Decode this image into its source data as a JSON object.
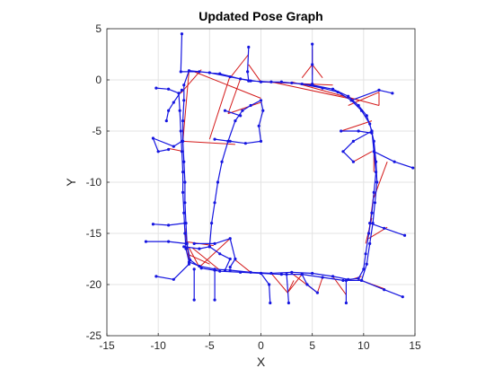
{
  "chart_data": {
    "type": "line",
    "title": "Updated Pose Graph",
    "xlabel": "X",
    "ylabel": "Y",
    "xlim": [
      -15,
      15
    ],
    "ylim": [
      -25,
      5
    ],
    "xticks": [
      -15,
      -10,
      -5,
      0,
      5,
      10,
      15
    ],
    "yticks": [
      5,
      0,
      -5,
      -10,
      -15,
      -20,
      -25
    ],
    "grid": true,
    "colors": {
      "poses": "#1515e0",
      "loop_closures": "#d41a1a",
      "grid": "#e3e3e3",
      "axes": "#262626"
    },
    "series": [
      {
        "role": "poses",
        "points": [
          [
            -10.2,
            -0.8
          ],
          [
            -9.0,
            -0.9
          ],
          [
            -8.0,
            -1.3
          ],
          [
            -7.9,
            -3.0
          ],
          [
            -7.8,
            -5.0
          ],
          [
            -7.7,
            -7.0
          ],
          [
            -7.6,
            -9.0
          ],
          [
            -7.6,
            -11.0
          ],
          [
            -7.5,
            -13.0
          ],
          [
            -7.4,
            -15.0
          ],
          [
            -7.3,
            -16.5
          ],
          [
            -7.0,
            -17.8
          ],
          [
            -6.0,
            -18.2
          ],
          [
            -4.5,
            -18.5
          ],
          [
            -3.0,
            -18.6
          ],
          [
            -1.0,
            -18.8
          ],
          [
            1.0,
            -18.9
          ],
          [
            3.0,
            -18.8
          ],
          [
            5.0,
            -18.9
          ],
          [
            7.0,
            -19.2
          ],
          [
            8.5,
            -19.5
          ],
          [
            9.5,
            -19.4
          ],
          [
            10.0,
            -18.5
          ],
          [
            10.2,
            -17.0
          ],
          [
            10.5,
            -15.0
          ],
          [
            10.8,
            -13.0
          ],
          [
            11.0,
            -11.0
          ],
          [
            11.2,
            -9.0
          ],
          [
            11.0,
            -7.0
          ],
          [
            10.8,
            -5.0
          ],
          [
            10.3,
            -3.5
          ],
          [
            9.5,
            -2.5
          ],
          [
            8.5,
            -1.6
          ],
          [
            7.0,
            -0.9
          ],
          [
            5.0,
            -0.5
          ],
          [
            3.0,
            -0.3
          ],
          [
            1.0,
            -0.2
          ],
          [
            -1.0,
            -0.1
          ],
          [
            -3.0,
            0.3
          ],
          [
            -5.0,
            0.7
          ],
          [
            -7.0,
            0.9
          ],
          [
            -7.5,
            -0.5
          ],
          [
            -7.5,
            -2.0
          ],
          [
            -7.6,
            -4.0
          ],
          [
            -7.6,
            -6.0
          ],
          [
            -7.5,
            -8.0
          ],
          [
            -7.4,
            -10.0
          ],
          [
            -7.4,
            -12.0
          ],
          [
            -7.3,
            -14.0
          ],
          [
            -7.2,
            -16.0
          ],
          [
            -6.9,
            -17.6
          ],
          [
            -5.8,
            -18.4
          ],
          [
            -4.0,
            -18.7
          ],
          [
            -2.0,
            -18.8
          ],
          [
            0.0,
            -18.9
          ],
          [
            2.0,
            -19.0
          ],
          [
            4.0,
            -19.0
          ],
          [
            6.0,
            -19.3
          ],
          [
            8.0,
            -19.6
          ],
          [
            9.8,
            -19.6
          ],
          [
            10.3,
            -18.0
          ],
          [
            10.6,
            -16.0
          ],
          [
            10.9,
            -14.0
          ],
          [
            11.1,
            -12.0
          ],
          [
            11.3,
            -10.0
          ],
          [
            11.2,
            -8.0
          ],
          [
            11.0,
            -6.0
          ],
          [
            10.6,
            -4.3
          ],
          [
            9.8,
            -3.0
          ],
          [
            8.8,
            -2.0
          ],
          [
            7.5,
            -1.2
          ],
          [
            6.0,
            -0.8
          ],
          [
            4.0,
            -0.4
          ],
          [
            2.0,
            -0.2
          ],
          [
            0.0,
            -0.2
          ],
          [
            -2.0,
            0.1
          ],
          [
            -4.0,
            0.6
          ],
          [
            -6.0,
            0.8
          ],
          [
            -7.8,
            0.8
          ],
          [
            -7.7,
            4.5
          ]
        ]
      },
      {
        "role": "branch",
        "points": [
          [
            -7.7,
            -1.0
          ],
          [
            -8.5,
            -2.2
          ],
          [
            -9.0,
            -3.0
          ],
          [
            -9.2,
            -4.0
          ]
        ]
      },
      {
        "role": "branch",
        "points": [
          [
            -7.7,
            -6.0
          ],
          [
            -8.5,
            -6.5
          ],
          [
            -10.5,
            -5.7
          ],
          [
            -10.0,
            -7.0
          ],
          [
            -9.0,
            -6.8
          ]
        ]
      },
      {
        "role": "branch",
        "points": [
          [
            -7.4,
            -14.0
          ],
          [
            -9.0,
            -14.2
          ],
          [
            -10.5,
            -14.1
          ]
        ]
      },
      {
        "role": "branch",
        "points": [
          [
            -7.3,
            -16.0
          ],
          [
            -9.0,
            -15.8
          ],
          [
            -11.2,
            -15.8
          ]
        ]
      },
      {
        "role": "branch",
        "points": [
          [
            -7.0,
            -18.0
          ],
          [
            -8.5,
            -19.5
          ],
          [
            -10.2,
            -19.2
          ]
        ]
      },
      {
        "role": "branch",
        "points": [
          [
            -6.5,
            -18.5
          ],
          [
            -6.5,
            -21.5
          ]
        ]
      },
      {
        "role": "branch",
        "points": [
          [
            -4.5,
            -18.6
          ],
          [
            -4.5,
            -21.5
          ]
        ]
      },
      {
        "role": "branch",
        "points": [
          [
            -6.5,
            -16.0
          ],
          [
            -4.5,
            -16.0
          ],
          [
            -3.0,
            -15.5
          ],
          [
            -2.5,
            -17.5
          ],
          [
            -3.0,
            -18.3
          ]
        ]
      },
      {
        "role": "branch",
        "points": [
          [
            0.0,
            -18.9
          ],
          [
            0.8,
            -20.0
          ],
          [
            0.9,
            -21.8
          ]
        ]
      },
      {
        "role": "branch",
        "points": [
          [
            2.5,
            -19.0
          ],
          [
            2.7,
            -21.8
          ]
        ]
      },
      {
        "role": "branch",
        "points": [
          [
            4.0,
            -19.0
          ],
          [
            4.5,
            -20.0
          ],
          [
            5.5,
            -20.8
          ]
        ]
      },
      {
        "role": "branch",
        "points": [
          [
            8.3,
            -19.6
          ],
          [
            8.3,
            -21.8
          ]
        ]
      },
      {
        "role": "branch",
        "points": [
          [
            9.8,
            -19.6
          ],
          [
            12.0,
            -20.5
          ],
          [
            13.8,
            -21.2
          ]
        ]
      },
      {
        "role": "branch",
        "points": [
          [
            10.6,
            -14.0
          ],
          [
            12.0,
            -14.5
          ],
          [
            14.0,
            -15.2
          ]
        ]
      },
      {
        "role": "branch",
        "points": [
          [
            11.0,
            -7.0
          ],
          [
            13.0,
            -8.0
          ],
          [
            14.8,
            -8.6
          ]
        ]
      },
      {
        "role": "branch",
        "points": [
          [
            10.8,
            -5.2
          ],
          [
            9.5,
            -5.0
          ],
          [
            7.8,
            -5.0
          ]
        ]
      },
      {
        "role": "branch",
        "points": [
          [
            10.8,
            -5.0
          ],
          [
            9.0,
            -6.0
          ],
          [
            8.0,
            -7.0
          ],
          [
            9.0,
            -8.0
          ]
        ]
      },
      {
        "role": "branch",
        "points": [
          [
            8.8,
            -2.0
          ],
          [
            11.5,
            -1.0
          ],
          [
            12.8,
            -1.3
          ]
        ]
      },
      {
        "role": "branch",
        "points": [
          [
            5.0,
            -0.4
          ],
          [
            5.0,
            1.5
          ],
          [
            5.0,
            3.5
          ]
        ]
      },
      {
        "role": "branch",
        "points": [
          [
            -1.2,
            -0.1
          ],
          [
            -1.3,
            0.8
          ],
          [
            -1.2,
            3.2
          ]
        ]
      },
      {
        "role": "branch",
        "points": [
          [
            -7.5,
            -16.3
          ],
          [
            -6.0,
            -16.5
          ],
          [
            -5.0,
            -16.3
          ],
          [
            -4.0,
            -17.0
          ],
          [
            -3.0,
            -17.5
          ],
          [
            -3.5,
            -18.6
          ]
        ]
      },
      {
        "role": "branch",
        "points": [
          [
            -5.0,
            -16.3
          ],
          [
            -4.8,
            -14.0
          ],
          [
            -4.5,
            -12.0
          ],
          [
            -4.2,
            -10.0
          ],
          [
            -3.8,
            -8.0
          ],
          [
            -3.2,
            -6.0
          ],
          [
            -2.5,
            -4.0
          ],
          [
            -1.8,
            -3.0
          ],
          [
            -1.0,
            -2.5
          ],
          [
            0.0,
            -2.0
          ],
          [
            0.2,
            -3.0
          ],
          [
            -0.2,
            -4.5
          ],
          [
            0.0,
            -6.0
          ],
          [
            -1.5,
            -6.2
          ],
          [
            -3.0,
            -6.0
          ],
          [
            -4.5,
            -5.8
          ]
        ]
      },
      {
        "role": "branch",
        "points": [
          [
            -2.0,
            -3.5
          ],
          [
            -3.5,
            -3.0
          ]
        ]
      }
    ],
    "loop_closures": [
      [
        [
          -7.8,
          -1.3
        ],
        [
          -5.8,
          1.0
        ]
      ],
      [
        [
          -7.0,
          0.9
        ],
        [
          -7.6,
          -6.0
        ]
      ],
      [
        [
          -7.6,
          -6.0
        ],
        [
          -2.5,
          -6.3
        ]
      ],
      [
        [
          -7.5,
          -7.0
        ],
        [
          -9.0,
          -6.7
        ]
      ],
      [
        [
          -6.5,
          0.8
        ],
        [
          0.0,
          -1.8
        ]
      ],
      [
        [
          -2.0,
          0.1
        ],
        [
          -3.2,
          -3.3
        ]
      ],
      [
        [
          -3.2,
          -3.3
        ],
        [
          0.0,
          -2.2
        ]
      ],
      [
        [
          -3.0,
          0.4
        ],
        [
          -5.0,
          -5.8
        ]
      ],
      [
        [
          -7.4,
          -15.8
        ],
        [
          -4.6,
          -16.2
        ]
      ],
      [
        [
          -7.2,
          -17.0
        ],
        [
          -5.0,
          -18.0
        ]
      ],
      [
        [
          -7.0,
          -17.6
        ],
        [
          -7.4,
          -14.5
        ]
      ],
      [
        [
          -6.0,
          -18.3
        ],
        [
          -7.0,
          -16.4
        ]
      ],
      [
        [
          -6.0,
          -18.3
        ],
        [
          -3.0,
          -15.5
        ]
      ],
      [
        [
          -4.0,
          -18.6
        ],
        [
          -6.7,
          -16.4
        ]
      ],
      [
        [
          -1.0,
          -18.8
        ],
        [
          -2.5,
          -17.6
        ]
      ],
      [
        [
          1.0,
          -18.9
        ],
        [
          2.6,
          -20.8
        ]
      ],
      [
        [
          2.6,
          -20.8
        ],
        [
          3.2,
          -19.6
        ]
      ],
      [
        [
          3.0,
          -18.9
        ],
        [
          5.5,
          -20.8
        ]
      ],
      [
        [
          4.0,
          -19.0
        ],
        [
          2.6,
          -20.8
        ]
      ],
      [
        [
          6.0,
          -19.3
        ],
        [
          5.5,
          -20.8
        ]
      ],
      [
        [
          7.0,
          -19.2
        ],
        [
          8.3,
          -21.0
        ]
      ],
      [
        [
          8.5,
          -19.6
        ],
        [
          9.8,
          -19.2
        ]
      ],
      [
        [
          9.5,
          -19.5
        ],
        [
          12.0,
          -20.4
        ]
      ],
      [
        [
          10.2,
          -16.0
        ],
        [
          10.8,
          -13.5
        ]
      ],
      [
        [
          10.5,
          -15.5
        ],
        [
          12.3,
          -14.4
        ]
      ],
      [
        [
          10.5,
          -15.0
        ],
        [
          11.0,
          -11.0
        ]
      ],
      [
        [
          11.0,
          -11.5
        ],
        [
          12.3,
          -8.0
        ]
      ],
      [
        [
          11.0,
          -9.0
        ],
        [
          11.0,
          -6.8
        ]
      ],
      [
        [
          9.0,
          -8.0
        ],
        [
          10.8,
          -7.0
        ]
      ],
      [
        [
          8.5,
          -1.7
        ],
        [
          11.5,
          -2.5
        ]
      ],
      [
        [
          8.5,
          -2.5
        ],
        [
          11.5,
          -1.2
        ]
      ],
      [
        [
          11.5,
          -2.5
        ],
        [
          11.5,
          -1.2
        ]
      ],
      [
        [
          5.0,
          1.5
        ],
        [
          4.0,
          0.2
        ]
      ],
      [
        [
          5.0,
          1.5
        ],
        [
          6.0,
          0.2
        ]
      ],
      [
        [
          5.0,
          3.0
        ],
        [
          5.0,
          0.5
        ]
      ],
      [
        [
          -1.2,
          1.5
        ],
        [
          0.0,
          -0.2
        ]
      ],
      [
        [
          -1.2,
          2.5
        ],
        [
          -3.0,
          0.2
        ]
      ],
      [
        [
          1.0,
          -0.2
        ],
        [
          8.5,
          -1.8
        ]
      ],
      [
        [
          3.0,
          -0.2
        ],
        [
          9.5,
          -2.0
        ]
      ],
      [
        [
          0.0,
          -0.2
        ],
        [
          7.0,
          -0.5
        ]
      ],
      [
        [
          10.8,
          -5.0
        ],
        [
          11.2,
          -8.0
        ]
      ],
      [
        [
          7.8,
          -5.0
        ],
        [
          10.8,
          -4.0
        ]
      ]
    ]
  }
}
